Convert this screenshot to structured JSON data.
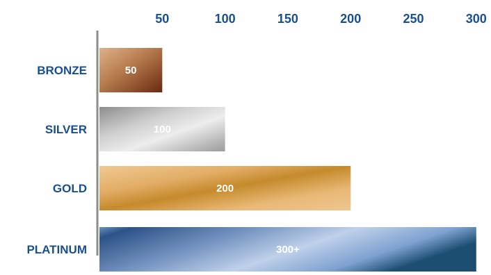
{
  "chart_data": {
    "type": "bar",
    "orientation": "horizontal",
    "categories": [
      "BRONZE",
      "SILVER",
      "GOLD",
      "PLATINUM"
    ],
    "values": [
      50,
      100,
      200,
      300
    ],
    "data_labels": [
      "50",
      "100",
      "200",
      "300+"
    ],
    "x_ticks": [
      50,
      100,
      150,
      200,
      250,
      300
    ],
    "x_tick_labels": [
      "50",
      "100",
      "150",
      "200",
      "250",
      "300"
    ],
    "xlim": [
      0,
      306
    ],
    "x_axis_position": "top",
    "grid": false,
    "colors": {
      "text": "#1a4f8e",
      "axis": "#8c8c8c",
      "bronze": [
        "#e0b08a",
        "#b57a4c",
        "#6b2812"
      ],
      "silver": [
        "#8d8d8d",
        "#e4e4e4",
        "#a0a0a0"
      ],
      "gold": [
        "#e8be82",
        "#c58a2c",
        "#ecc38a"
      ],
      "platinum": [
        "#2d5287",
        "#b8cbe8",
        "#1d4e72"
      ]
    }
  }
}
